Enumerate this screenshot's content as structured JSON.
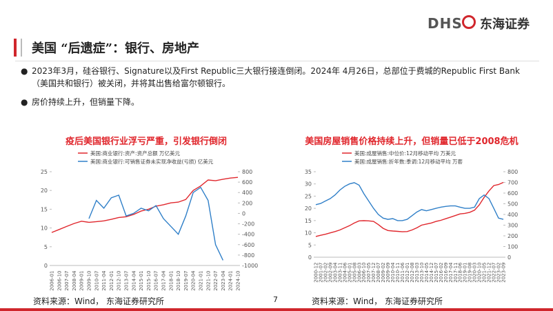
{
  "header": {
    "logo_mark": "DHS",
    "logo_text": "东海证券",
    "title": "美国 “后遗症”：银行、房地产"
  },
  "bullets": [
    "2023年3月，硅谷银行、Signature以及First Republic三大银行接连倒闭。2024年 4月26日，总部位于费城的Republic First Bank（美国共和银行）被关闭，并将其出售给富尔顿银行。",
    "房价持续上升，但销量下降。"
  ],
  "footer": {
    "sources": [
      "资料来源：Wind， 东海证券研究所",
      "资料来源：Wind， 东海证券研究所"
    ],
    "page": "7"
  },
  "chart_data": [
    {
      "type": "line",
      "title": "疫后美国银行业浮亏严重，引发银行倒闭",
      "categories": [
        "2006-01",
        "2006-10",
        "2007-07",
        "2008-04",
        "2009-01",
        "2009-10",
        "2010-07",
        "2011-04",
        "2012-01",
        "2012-10",
        "2013-07",
        "2014-04",
        "2015-01",
        "2015-10",
        "2016-07",
        "2017-04",
        "2018-01",
        "2018-10",
        "2019-07",
        "2020-04",
        "2021-01",
        "2021-10",
        "2022-07",
        "2023-04",
        "2024-01",
        "2024-10"
      ],
      "series": [
        {
          "name": "美国:商业银行:资产:资产总额 万亿美元",
          "color": "#e0262c",
          "values": [
            8.8,
            9.6,
            10.4,
            11.2,
            11.8,
            11.5,
            11.7,
            11.9,
            12.3,
            12.8,
            13.0,
            13.6,
            14.5,
            15.0,
            15.8,
            16.2,
            16.7,
            16.9,
            17.6,
            20.0,
            21.2,
            22.8,
            22.6,
            23.0,
            23.3,
            23.5
          ]
        },
        {
          "name": "美国:商业银行:可销售证券未实现净收益(亏损) 亿美元",
          "color": "#2f7fc8",
          "axis": "y2",
          "values": [
            null,
            null,
            null,
            null,
            null,
            -100,
            250,
            100,
            300,
            350,
            -50,
            0,
            100,
            50,
            150,
            -100,
            -250,
            -400,
            -50,
            400,
            500,
            250,
            -600,
            -900,
            null,
            null
          ]
        }
      ],
      "ylim": [
        0,
        25
      ],
      "yticks": [
        0,
        5,
        10,
        15,
        20,
        25
      ],
      "y2lim": [
        -1000,
        800
      ],
      "y2ticks": [
        -1000,
        -800,
        -600,
        -400,
        -200,
        0,
        200,
        400,
        600,
        800
      ]
    },
    {
      "type": "line",
      "title": "美国房屋销售价格持续上升，但销量已低于2008危机",
      "categories": [
        "2000-12",
        "2001-07",
        "2002-02",
        "2002-09",
        "2003-04",
        "2003-11",
        "2004-06",
        "2005-01",
        "2005-08",
        "2006-03",
        "2006-10",
        "2007-05",
        "2007-12",
        "2008-07",
        "2009-02",
        "2009-09",
        "2010-04",
        "2010-11",
        "2011-06",
        "2012-01",
        "2012-08",
        "2013-03",
        "2013-10",
        "2014-05",
        "2014-12",
        "2015-07",
        "2016-02",
        "2016-09",
        "2017-04",
        "2017-11",
        "2018-06",
        "2019-01",
        "2019-08",
        "2020-03",
        "2020-10",
        "2021-05",
        "2021-12",
        "2022-07",
        "2023-02",
        "2023-09"
      ],
      "series": [
        {
          "name": "美国:成屋销售:中位价:12月移动平均 万美元",
          "color": "#e0262c",
          "axis": "y2",
          "values": [
            194,
            205,
            215,
            228,
            240,
            255,
            275,
            295,
            320,
            340,
            342,
            340,
            335,
            305,
            270,
            250,
            245,
            242,
            238,
            240,
            255,
            275,
            300,
            310,
            320,
            335,
            345,
            360,
            375,
            390,
            405,
            410,
            420,
            440,
            490,
            560,
            620,
            670,
            680,
            700
          ]
        },
        {
          "name": "美国:成屋销售:折年数:季调:12月移动平均 万套",
          "color": "#2f7fc8",
          "values": [
            21.5,
            22,
            23,
            24,
            25.5,
            27.5,
            29,
            30,
            30.5,
            29.5,
            26,
            23,
            20,
            17.5,
            16,
            15.5,
            15.8,
            15,
            15,
            15.5,
            17,
            18.5,
            19.5,
            19,
            19.5,
            20,
            20.5,
            20.8,
            21,
            21,
            20.5,
            20,
            20,
            20.5,
            24,
            25.5,
            24,
            20,
            16,
            15.5
          ]
        }
      ],
      "ylim": [
        0,
        35
      ],
      "yticks": [
        0,
        5,
        10,
        15,
        20,
        25,
        30,
        35
      ],
      "y2lim": [
        0,
        800
      ],
      "y2ticks": [
        0,
        100,
        200,
        300,
        400,
        500,
        600,
        700,
        800
      ]
    }
  ]
}
